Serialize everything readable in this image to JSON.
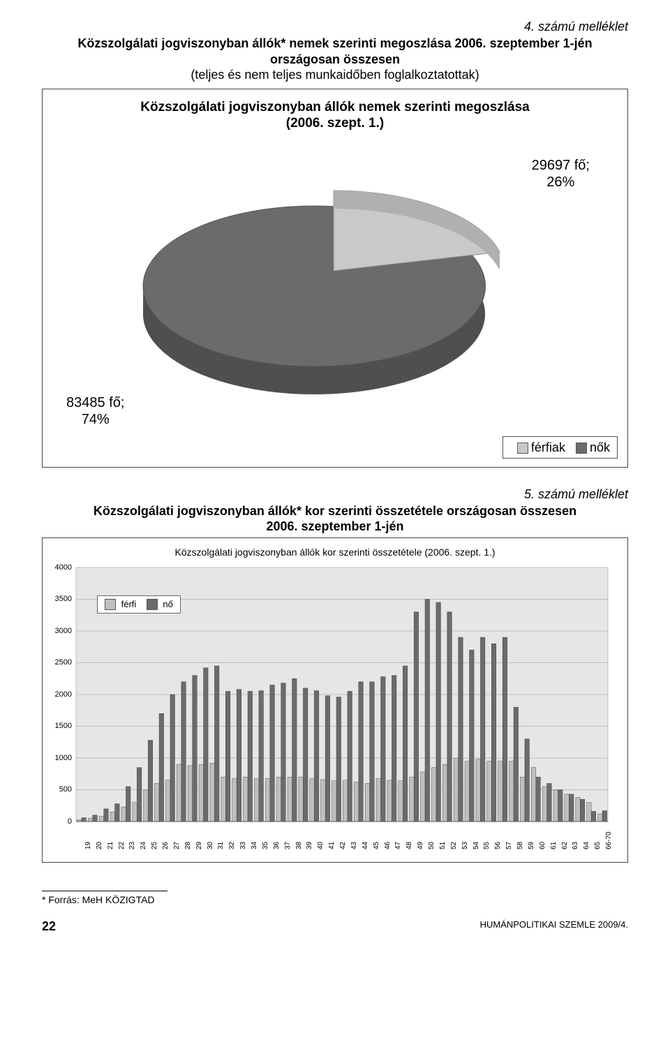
{
  "annex1": "4. számú melléklet",
  "heading1_line1": "Közszolgálati jogviszonyban állók* nemek szerinti megoszlása 2006. szeptember 1-jén",
  "heading1_line2": "országosan összesen",
  "heading1_sub": "(teljes és nem teljes munkaidőben foglalkoztatottak)",
  "pie_chart": {
    "title_line1": "Közszolgálati jogviszonyban állók nemek szerinti megoszlása",
    "title_line2": "(2006. szept. 1.)",
    "slice1": {
      "label_line1": "29697 fő;",
      "label_line2": "26%",
      "value": 26,
      "color": "#c9c9c9"
    },
    "slice2": {
      "label_line1": "83485 fő;",
      "label_line2": "74%",
      "value": 74,
      "color": "#6b6b6b"
    },
    "background": "#ffffff",
    "legend": {
      "item1": {
        "label": "férfiak",
        "color": "#c9c9c9"
      },
      "item2": {
        "label": "nők",
        "color": "#6b6b6b"
      }
    }
  },
  "annex2": "5. számú melléklet",
  "heading2_line1": "Közszolgálati jogviszonyban állók* kor szerinti összetétele országosan összesen",
  "heading2_line2": "2006. szeptember 1-jén",
  "bar_chart": {
    "title": "Közszolgálati jogviszonyban állók kor szerinti összetétele (2006. szept. 1.)",
    "type": "grouped-bar",
    "background": "#e6e6e6",
    "plot_bg": "#e6e6e6",
    "grid_color": "#bdbdbd",
    "series_colors": {
      "ferfi": "#bfbfbf",
      "no": "#6b6b6b"
    },
    "legend": {
      "ferfi": "férfi",
      "no": "nő"
    },
    "ymax": 4000,
    "ytick_step": 500,
    "yticks": [
      0,
      500,
      1000,
      1500,
      2000,
      2500,
      3000,
      3500,
      4000
    ],
    "categories": [
      "19",
      "20",
      "21",
      "22",
      "23",
      "24",
      "25",
      "26",
      "27",
      "28",
      "29",
      "30",
      "31",
      "32",
      "33",
      "34",
      "35",
      "36",
      "37",
      "38",
      "39",
      "40",
      "41",
      "42",
      "43",
      "44",
      "45",
      "46",
      "47",
      "48",
      "49",
      "50",
      "51",
      "52",
      "53",
      "54",
      "55",
      "56",
      "57",
      "58",
      "59",
      "60",
      "61",
      "62",
      "63",
      "64",
      "65",
      "66-70"
    ],
    "ferfi": [
      30,
      50,
      80,
      150,
      230,
      300,
      500,
      600,
      650,
      900,
      880,
      900,
      920,
      700,
      680,
      700,
      680,
      680,
      700,
      700,
      700,
      680,
      660,
      640,
      650,
      620,
      600,
      680,
      650,
      640,
      700,
      780,
      850,
      900,
      1000,
      950,
      980,
      950,
      950,
      950,
      700,
      850,
      550,
      500,
      430,
      380,
      300,
      120
    ],
    "no": [
      60,
      100,
      200,
      280,
      550,
      850,
      1280,
      1700,
      2000,
      2200,
      2300,
      2420,
      2450,
      2050,
      2080,
      2050,
      2060,
      2150,
      2180,
      2250,
      2100,
      2060,
      1980,
      1960,
      2050,
      2200,
      2200,
      2280,
      2300,
      2450,
      3300,
      3500,
      3450,
      3300,
      2900,
      2700,
      2900,
      2800,
      2900,
      1800,
      1300,
      700,
      600,
      500,
      430,
      350,
      160,
      170
    ]
  },
  "footnote": "* Forrás: MeH KÖZIGTAD",
  "page_number": "22",
  "footer_right": "HUMÁNPOLITIKAI SZEMLE 2009/4."
}
